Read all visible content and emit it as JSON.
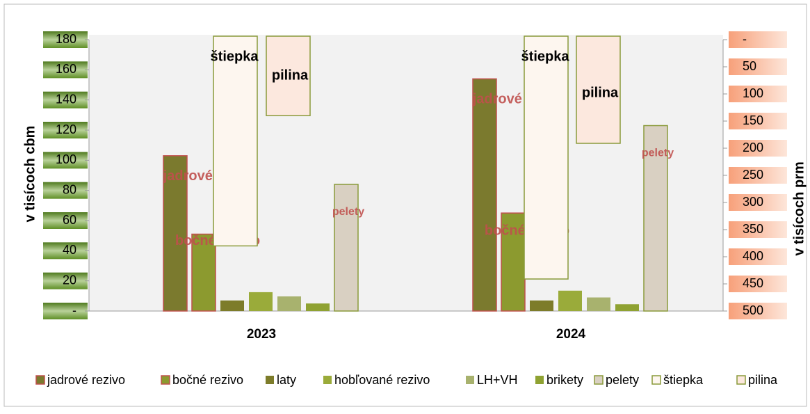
{
  "chart_data": {
    "type": "bar",
    "categories": [
      "2023",
      "2024"
    ],
    "ylabel": "v tisícoch cbm",
    "y2label": "v tisícoch prm",
    "ylim": [
      0,
      180
    ],
    "yticks": [
      {
        "value": 0,
        "label": "-"
      },
      20,
      40,
      60,
      80,
      100,
      120,
      140,
      160,
      180
    ],
    "y2lim": [
      0,
      500
    ],
    "y2_inverted": true,
    "y2ticks": [
      {
        "value": 0,
        "label": "-"
      },
      50,
      100,
      150,
      200,
      250,
      300,
      350,
      400,
      450,
      500
    ],
    "legend": "bottom",
    "series": [
      {
        "name": "jadrové rezivo",
        "color": "#7b7a2e",
        "values": [
          103,
          154
        ]
      },
      {
        "name": "bočné rezivo",
        "color": "#8c9a2f",
        "values": [
          51,
          65
        ]
      },
      {
        "name": "laty",
        "color": "#7d7c2a",
        "values": [
          7,
          7
        ]
      },
      {
        "name": "hobľované rezivo",
        "color": "#9aab3a",
        "values": [
          12.5,
          13.5
        ]
      },
      {
        "name": "LH+VH",
        "color": "#a8b26e",
        "values": [
          9.7,
          9
        ]
      },
      {
        "name": "brikety",
        "color": "#8fa232",
        "values": [
          5,
          4.5
        ]
      },
      {
        "name": "pelety",
        "color": "#d9d0c2",
        "values": [
          84,
          123
        ]
      },
      {
        "name": "štiepka",
        "color": "#fdf6ef",
        "axis": "y2",
        "values": [
          380,
          441
        ]
      },
      {
        "name": "pilina",
        "color": "#fce8de",
        "axis": "y2",
        "values": [
          140,
          191
        ]
      }
    ]
  }
}
